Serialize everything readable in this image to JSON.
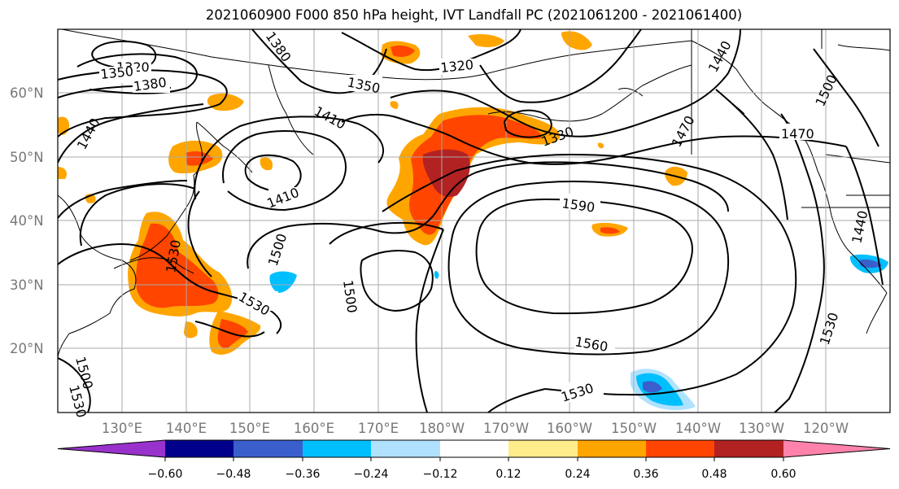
{
  "title": "2021060900 F000 850 hPa height, IVT Landfall PC (2021061200 - 2021061400)",
  "lat_labels": [
    "60°N",
    "50°N",
    "40°N",
    "30°N",
    "20°N"
  ],
  "lon_labels": [
    "130°E",
    "140°E",
    "150°E",
    "160°E",
    "170°E",
    "180°W",
    "170°W",
    "160°W",
    "150°W",
    "140°W",
    "130°W",
    "120°W"
  ],
  "contour_labels": [
    "1320",
    "1350",
    "1380",
    "1380",
    "1320",
    "1350",
    "1410",
    "1440",
    "1410",
    "1330",
    "1440",
    "1500",
    "1470",
    "1470",
    "1590",
    "1500",
    "1530",
    "1500",
    "1530",
    "1440",
    "1560",
    "1530",
    "1530",
    "1500",
    "1530"
  ],
  "colorbar": {
    "colors": [
      "#9932cc",
      "#00008b",
      "#3a5fcd",
      "#00bfff",
      "#b0e2ff",
      "#ffffff",
      "#ffec8b",
      "#ffa500",
      "#ff4500",
      "#b22222",
      "#ff82ab"
    ],
    "tick_labels": [
      "−0.60",
      "−0.48",
      "−0.36",
      "−0.24",
      "−0.12",
      "0.12",
      "0.24",
      "0.36",
      "0.48",
      "0.60"
    ]
  }
}
